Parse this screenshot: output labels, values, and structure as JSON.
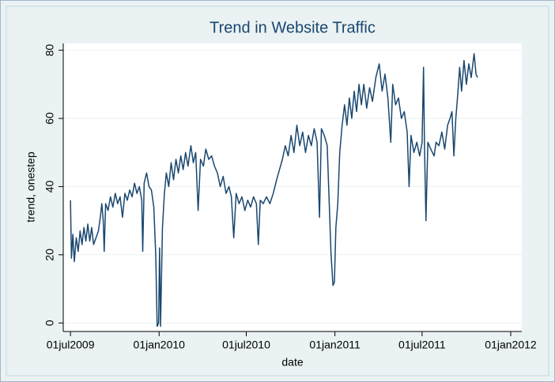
{
  "chart_data": {
    "type": "line",
    "title": "Trend in Website Traffic",
    "x_label": "date",
    "y_label": "trend, onestep",
    "color": "#1a476f",
    "grid": true,
    "xlim": [
      "2009-06-16",
      "2012-01-24"
    ],
    "xticks": [
      {
        "value": "2009-07-01",
        "label": "01jul2009"
      },
      {
        "value": "2010-01-01",
        "label": "01jan2010"
      },
      {
        "value": "2010-07-01",
        "label": "01jul2010"
      },
      {
        "value": "2011-01-01",
        "label": "01jan2011"
      },
      {
        "value": "2011-07-01",
        "label": "01jul2011"
      },
      {
        "value": "2012-01-01",
        "label": "01jan2012"
      }
    ],
    "ylim": [
      -2.5,
      82
    ],
    "yticks": [
      0,
      20,
      40,
      60,
      80
    ],
    "x": [
      "2009-07-01",
      "2009-07-03",
      "2009-07-06",
      "2009-07-09",
      "2009-07-13",
      "2009-07-17",
      "2009-07-21",
      "2009-07-25",
      "2009-07-29",
      "2009-08-02",
      "2009-08-06",
      "2009-08-10",
      "2009-08-14",
      "2009-08-18",
      "2009-08-23",
      "2009-08-28",
      "2009-09-01",
      "2009-09-04",
      "2009-09-07",
      "2009-09-09",
      "2009-09-12",
      "2009-09-17",
      "2009-09-22",
      "2009-09-27",
      "2009-10-02",
      "2009-10-07",
      "2009-10-12",
      "2009-10-17",
      "2009-10-22",
      "2009-10-27",
      "2009-11-01",
      "2009-11-06",
      "2009-11-11",
      "2009-11-16",
      "2009-11-21",
      "2009-11-26",
      "2009-11-28",
      "2009-12-01",
      "2009-12-06",
      "2009-12-11",
      "2009-12-16",
      "2009-12-21",
      "2009-12-25",
      "2009-12-28",
      "2009-12-31",
      "2010-01-02",
      "2010-01-04",
      "2010-01-08",
      "2010-01-12",
      "2010-01-16",
      "2010-01-21",
      "2010-01-26",
      "2010-01-31",
      "2010-02-05",
      "2010-02-10",
      "2010-02-15",
      "2010-02-20",
      "2010-02-25",
      "2010-03-02",
      "2010-03-08",
      "2010-03-13",
      "2010-03-18",
      "2010-03-23",
      "2010-03-28",
      "2010-04-03",
      "2010-04-08",
      "2010-04-14",
      "2010-04-20",
      "2010-04-26",
      "2010-05-02",
      "2010-05-08",
      "2010-05-14",
      "2010-05-20",
      "2010-05-26",
      "2010-05-31",
      "2010-06-05",
      "2010-06-10",
      "2010-06-16",
      "2010-06-22",
      "2010-06-28",
      "2010-07-04",
      "2010-07-10",
      "2010-07-16",
      "2010-07-22",
      "2010-07-26",
      "2010-07-30",
      "2010-08-05",
      "2010-08-12",
      "2010-08-19",
      "2010-08-26",
      "2010-09-02",
      "2010-09-08",
      "2010-09-14",
      "2010-09-20",
      "2010-09-26",
      "2010-10-02",
      "2010-10-08",
      "2010-10-14",
      "2010-10-20",
      "2010-10-26",
      "2010-11-01",
      "2010-11-07",
      "2010-11-13",
      "2010-11-19",
      "2010-11-25",
      "2010-11-30",
      "2010-12-04",
      "2010-12-10",
      "2010-12-16",
      "2010-12-20",
      "2010-12-24",
      "2010-12-28",
      "2010-12-31",
      "2011-01-03",
      "2011-01-07",
      "2011-01-11",
      "2011-01-16",
      "2011-01-21",
      "2011-01-26",
      "2011-01-31",
      "2011-02-05",
      "2011-02-10",
      "2011-02-15",
      "2011-02-20",
      "2011-02-25",
      "2011-03-02",
      "2011-03-08",
      "2011-03-14",
      "2011-03-20",
      "2011-03-27",
      "2011-04-03",
      "2011-04-09",
      "2011-04-15",
      "2011-04-21",
      "2011-04-27",
      "2011-05-01",
      "2011-05-07",
      "2011-05-13",
      "2011-05-19",
      "2011-05-25",
      "2011-05-31",
      "2011-06-04",
      "2011-06-08",
      "2011-06-14",
      "2011-06-20",
      "2011-06-26",
      "2011-07-01",
      "2011-07-04",
      "2011-07-06",
      "2011-07-09",
      "2011-07-13",
      "2011-07-19",
      "2011-07-26",
      "2011-07-30",
      "2011-08-05",
      "2011-08-11",
      "2011-08-17",
      "2011-08-23",
      "2011-08-28",
      "2011-09-01",
      "2011-09-05",
      "2011-09-09",
      "2011-09-13",
      "2011-09-17",
      "2011-09-21",
      "2011-09-26",
      "2011-10-01",
      "2011-10-06",
      "2011-10-11",
      "2011-10-17",
      "2011-10-21",
      "2011-10-24"
    ],
    "values": [
      36,
      19,
      26,
      18,
      25,
      21,
      27,
      23,
      28,
      24,
      29,
      24,
      28,
      23,
      25,
      27,
      31,
      35,
      30,
      21,
      35,
      33,
      37,
      34,
      38,
      35,
      37,
      31,
      38,
      36,
      39,
      37,
      41,
      38,
      40,
      36,
      21,
      41,
      44,
      40,
      39,
      34,
      20,
      -1,
      0,
      22,
      -1,
      28,
      38,
      44,
      40,
      47,
      42,
      48,
      44,
      49,
      45,
      50,
      46,
      52,
      47,
      50,
      33,
      48,
      46,
      51,
      48,
      49,
      46,
      44,
      40,
      43,
      38,
      40,
      37,
      25,
      38,
      35,
      37,
      33,
      36,
      34,
      37,
      35,
      23,
      36,
      35,
      37,
      35,
      38,
      42,
      45,
      48,
      52,
      49,
      55,
      50,
      58,
      52,
      56,
      50,
      55,
      52,
      57,
      53,
      31,
      57,
      55,
      52,
      36,
      20,
      11,
      12,
      28,
      35,
      50,
      58,
      64,
      58,
      66,
      60,
      68,
      62,
      70,
      64,
      70,
      63,
      69,
      65,
      72,
      76,
      68,
      73,
      66,
      53,
      70,
      64,
      66,
      60,
      62,
      56,
      40,
      55,
      50,
      53,
      49,
      53,
      75,
      52,
      30,
      53,
      51,
      49,
      53,
      52,
      56,
      51,
      58,
      60,
      62,
      49,
      60,
      67,
      75,
      68,
      77,
      70,
      76,
      72,
      79,
      73,
      72
    ]
  }
}
